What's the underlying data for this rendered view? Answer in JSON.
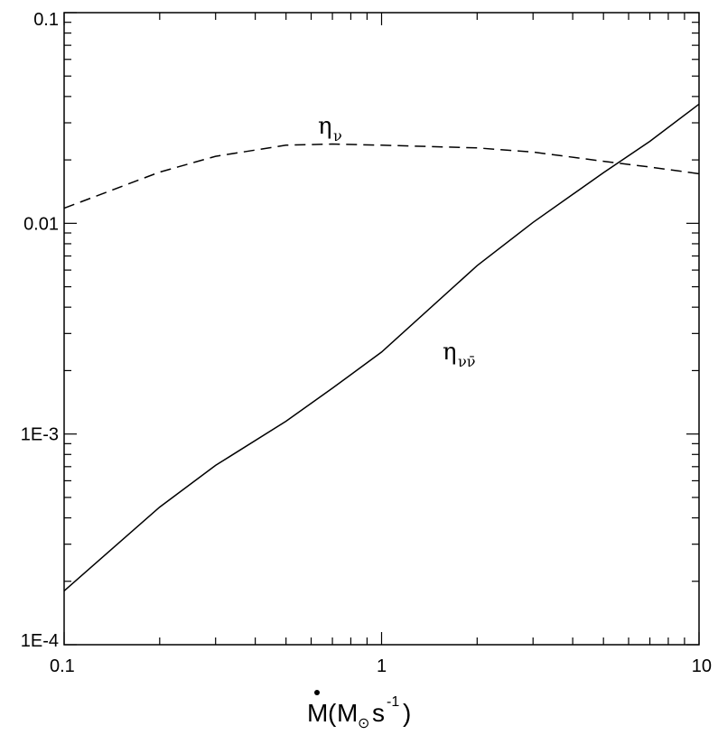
{
  "chart_data": {
    "type": "line",
    "x_scale": "log",
    "y_scale": "log",
    "xlim": [
      0.1,
      10
    ],
    "ylim": [
      0.0001,
      0.1
    ],
    "x_ticks": [
      {
        "value": 0.1,
        "label": "0.1"
      },
      {
        "value": 1,
        "label": "1"
      },
      {
        "value": 10,
        "label": "10"
      }
    ],
    "y_ticks": [
      {
        "value": 0.0001,
        "label": "1E-4"
      },
      {
        "value": 0.001,
        "label": "1E-3"
      },
      {
        "value": 0.01,
        "label": "0.01"
      },
      {
        "value": 0.1,
        "label": "0.1"
      }
    ],
    "xlabel": {
      "main": "M",
      "open": "(",
      "sym": "M",
      "sun": "⊙",
      "unit": "s",
      "exp": "-1",
      "close": ")"
    },
    "grid": false,
    "legend": "none",
    "series": [
      {
        "label_main": "η",
        "label_sub": "ν",
        "style": "dashed",
        "x": [
          0.1,
          0.2,
          0.3,
          0.5,
          0.7,
          1,
          2,
          3,
          5,
          7,
          10
        ],
        "y": [
          0.0118,
          0.0175,
          0.0208,
          0.0235,
          0.0238,
          0.0235,
          0.0228,
          0.0218,
          0.0197,
          0.0185,
          0.0172
        ]
      },
      {
        "label_main": "η",
        "label_sub": "νν̄",
        "style": "solid",
        "x": [
          0.1,
          0.2,
          0.3,
          0.5,
          0.7,
          1,
          2,
          3,
          5,
          7,
          10
        ],
        "y": [
          0.00018,
          0.00045,
          0.00071,
          0.00115,
          0.00165,
          0.00245,
          0.0063,
          0.0101,
          0.0174,
          0.0245,
          0.0368
        ]
      }
    ],
    "colors": {
      "axis": "#000000",
      "lines": "#000000"
    }
  }
}
